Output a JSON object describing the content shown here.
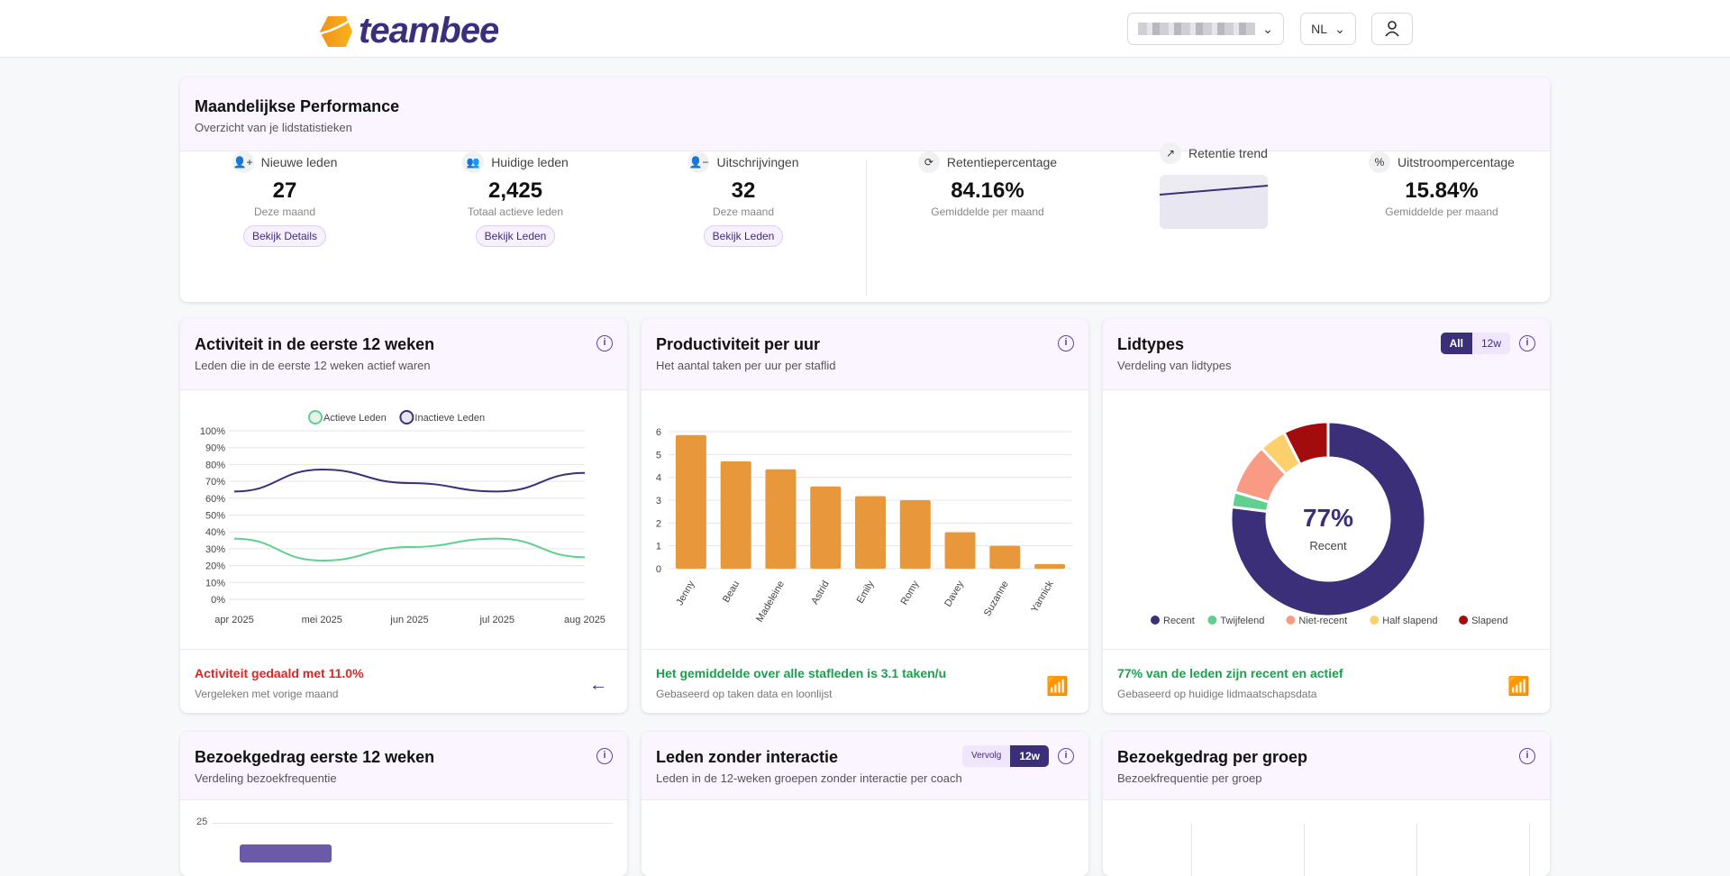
{
  "header": {
    "logo": "teambee",
    "language": "NL",
    "org_selector": "(blurred)"
  },
  "performance": {
    "title": "Maandelijkse Performance",
    "subtitle": "Overzicht van je lidstatistieken",
    "stats": [
      {
        "label": "Nieuwe leden",
        "value": "27",
        "sub": "Deze maand",
        "button": "Bekijk Details",
        "icon": "user-plus-icon"
      },
      {
        "label": "Huidige leden",
        "value": "2,425",
        "sub": "Totaal actieve leden",
        "button": "Bekijk Leden",
        "icon": "users-icon"
      },
      {
        "label": "Uitschrijvingen",
        "value": "32",
        "sub": "Deze maand",
        "button": "Bekijk Leden",
        "icon": "user-minus-icon"
      },
      {
        "label": "Retentiepercentage",
        "value": "84.16%",
        "sub": "Gemiddelde per maand",
        "icon": "refresh-icon"
      },
      {
        "label": "Retentie trend",
        "icon": "trending-up-icon"
      },
      {
        "label": "Uitstroompercentage",
        "value": "15.84%",
        "sub": "Gemiddelde per maand",
        "icon": "percent-icon"
      }
    ]
  },
  "activity": {
    "title": "Activiteit in de eerste 12 weken",
    "subtitle": "Leden die in de eerste 12 weken actief waren",
    "footer_main": "Activiteit gedaald met 11.0%",
    "footer_sub": "Vergeleken met vorige maand"
  },
  "productivity": {
    "title": "Productiviteit per uur",
    "subtitle": "Het aantal taken per uur per staflid",
    "footer_main": "Het gemiddelde over alle stafleden is 3.1 taken/u",
    "footer_sub": "Gebaseerd op taken data en loonlijst"
  },
  "lidtypes": {
    "title": "Lidtypes",
    "subtitle": "Verdeling van lidtypes",
    "toggle": [
      "All",
      "12w"
    ],
    "center_value": "77%",
    "center_label": "Recent",
    "footer_main": "77% van de leden zijn recent en actief",
    "footer_sub": "Gebaseerd op huidige lidmaatschapsdata"
  },
  "visits": {
    "title": "Bezoekgedrag eerste 12 weken",
    "subtitle": "Verdeling bezoekfrequentie",
    "ytick": "25"
  },
  "nointeraction": {
    "title": "Leden zonder interactie",
    "subtitle": "Leden in de 12-weken groepen zonder interactie per coach",
    "toggle": [
      "Vervolg",
      "12w"
    ]
  },
  "groups": {
    "title": "Bezoekgedrag per groep",
    "subtitle": "Bezoekfrequentie per groep"
  },
  "chart_data": [
    {
      "type": "line",
      "categories": [
        "apr 2025",
        "mei 2025",
        "jun 2025",
        "jul 2025",
        "aug 2025"
      ],
      "ylim": [
        0,
        100
      ],
      "yticks": [
        "0%",
        "10%",
        "20%",
        "30%",
        "40%",
        "50%",
        "60%",
        "70%",
        "80%",
        "90%",
        "100%"
      ],
      "series": [
        {
          "name": "Actieve Leden",
          "color": "#5fd08f",
          "values": [
            36,
            23,
            31,
            36,
            25
          ]
        },
        {
          "name": "Inactieve Leden",
          "color": "#3b2f7a",
          "values": [
            64,
            77,
            69,
            64,
            75
          ]
        }
      ]
    },
    {
      "type": "bar",
      "categories": [
        "Jenny",
        "Beau",
        "Madeleine",
        "Astrid",
        "Emily",
        "Romy",
        "Davey",
        "Suzanne",
        "Yannick"
      ],
      "values": [
        5.85,
        4.7,
        4.35,
        3.6,
        3.18,
        3.0,
        1.6,
        1.0,
        0.2
      ],
      "ylim": [
        0,
        6
      ],
      "yticks": [
        "0",
        "1",
        "2",
        "3",
        "4",
        "5",
        "6"
      ],
      "color": "#e8983b"
    },
    {
      "type": "pie",
      "labels": [
        "Recent",
        "Twijfelend",
        "Niet-recent",
        "Half slapend",
        "Slapend"
      ],
      "values": [
        77,
        2.5,
        8.5,
        4.5,
        7.5
      ],
      "colors": [
        "#3b2f7a",
        "#5fd08f",
        "#f99a85",
        "#fcd06b",
        "#a30c0c"
      ]
    }
  ]
}
